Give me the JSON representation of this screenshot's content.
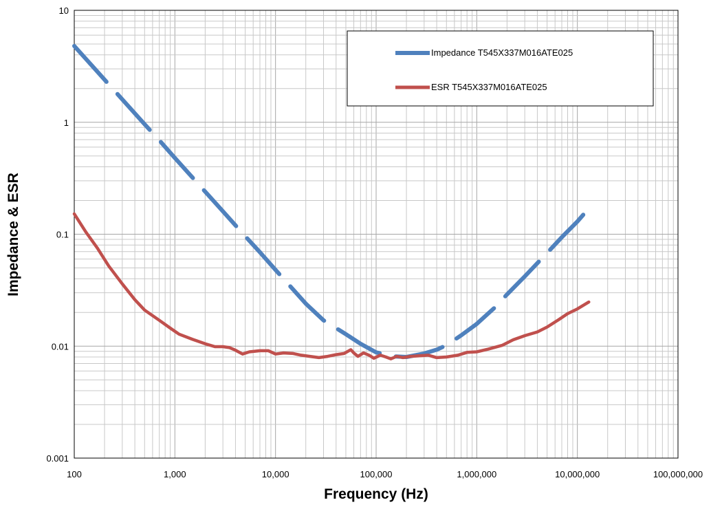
{
  "chart_data": {
    "type": "line",
    "xlabel": "Frequency (Hz)",
    "ylabel": "Impedance & ESR",
    "xscale": "log",
    "yscale": "log",
    "xlim": [
      100,
      100000000
    ],
    "ylim": [
      0.001,
      10
    ],
    "x_ticks": [
      {
        "value": 100,
        "label": "100"
      },
      {
        "value": 1000,
        "label": "1,000"
      },
      {
        "value": 10000,
        "label": "10,000"
      },
      {
        "value": 100000,
        "label": "100,000"
      },
      {
        "value": 1000000,
        "label": "1,000,000"
      },
      {
        "value": 10000000,
        "label": "10,000,000"
      },
      {
        "value": 100000000,
        "label": "100,000,000"
      }
    ],
    "y_ticks": [
      {
        "value": 0.001,
        "label": "0.001"
      },
      {
        "value": 0.01,
        "label": "0.01"
      },
      {
        "value": 0.1,
        "label": "0.1"
      },
      {
        "value": 1,
        "label": "1"
      },
      {
        "value": 10,
        "label": "10"
      }
    ],
    "grid": true,
    "legend_position": "top-right",
    "series": [
      {
        "name": "Impedance T545X337M016ATE025",
        "color": "#4f81bd",
        "style": "dashed",
        "points": [
          [
            100,
            4.8
          ],
          [
            150,
            3.2
          ],
          [
            200,
            2.4
          ],
          [
            300,
            1.6
          ],
          [
            500,
            0.96
          ],
          [
            700,
            0.69
          ],
          [
            1000,
            0.48
          ],
          [
            1500,
            0.32
          ],
          [
            2000,
            0.24
          ],
          [
            3000,
            0.16
          ],
          [
            5000,
            0.096
          ],
          [
            7000,
            0.069
          ],
          [
            10000,
            0.048
          ],
          [
            15000,
            0.032
          ],
          [
            20000,
            0.024
          ],
          [
            30000,
            0.017
          ],
          [
            40000,
            0.0145
          ],
          [
            50000,
            0.0128
          ],
          [
            70000,
            0.0105
          ],
          [
            100000,
            0.0088
          ],
          [
            150000,
            0.0081
          ],
          [
            200000,
            0.008
          ],
          [
            300000,
            0.0086
          ],
          [
            400000,
            0.0093
          ],
          [
            500000,
            0.0102
          ],
          [
            700000,
            0.0125
          ],
          [
            1000000,
            0.0158
          ],
          [
            1500000,
            0.022
          ],
          [
            2000000,
            0.029
          ],
          [
            3000000,
            0.042
          ],
          [
            5000000,
            0.068
          ],
          [
            7000000,
            0.094
          ],
          [
            10000000,
            0.13
          ],
          [
            13000000,
            0.17
          ]
        ]
      },
      {
        "name": "ESR T545X337M016ATE025",
        "color": "#c0504d",
        "style": "solid",
        "points": [
          [
            100,
            0.152
          ],
          [
            130,
            0.105
          ],
          [
            170,
            0.075
          ],
          [
            220,
            0.052
          ],
          [
            300,
            0.036
          ],
          [
            400,
            0.026
          ],
          [
            500,
            0.021
          ],
          [
            700,
            0.017
          ],
          [
            900,
            0.0145
          ],
          [
            1100,
            0.0128
          ],
          [
            1500,
            0.0115
          ],
          [
            2000,
            0.0105
          ],
          [
            2500,
            0.0099
          ],
          [
            3000,
            0.0099
          ],
          [
            3500,
            0.0097
          ],
          [
            4000,
            0.0092
          ],
          [
            4700,
            0.0085
          ],
          [
            5500,
            0.0089
          ],
          [
            7000,
            0.0091
          ],
          [
            8500,
            0.0091
          ],
          [
            10000,
            0.0085
          ],
          [
            12000,
            0.0087
          ],
          [
            15000,
            0.0086
          ],
          [
            18000,
            0.0083
          ],
          [
            22000,
            0.0081
          ],
          [
            27000,
            0.0079
          ],
          [
            33000,
            0.0081
          ],
          [
            40000,
            0.0084
          ],
          [
            48000,
            0.0086
          ],
          [
            56000,
            0.0093
          ],
          [
            60000,
            0.0087
          ],
          [
            66000,
            0.0081
          ],
          [
            75000,
            0.0087
          ],
          [
            85000,
            0.0083
          ],
          [
            95000,
            0.0078
          ],
          [
            110000,
            0.0083
          ],
          [
            125000,
            0.008
          ],
          [
            140000,
            0.0077
          ],
          [
            160000,
            0.0081
          ],
          [
            185000,
            0.0079
          ],
          [
            220000,
            0.0081
          ],
          [
            270000,
            0.0082
          ],
          [
            330000,
            0.0083
          ],
          [
            400000,
            0.0079
          ],
          [
            500000,
            0.008
          ],
          [
            650000,
            0.0083
          ],
          [
            800000,
            0.0088
          ],
          [
            1000000,
            0.0089
          ],
          [
            1300000,
            0.0094
          ],
          [
            1800000,
            0.0102
          ],
          [
            2300000,
            0.0114
          ],
          [
            3000000,
            0.0124
          ],
          [
            4000000,
            0.0134
          ],
          [
            5000000,
            0.0148
          ],
          [
            6500000,
            0.0172
          ],
          [
            8000000,
            0.0195
          ],
          [
            10000000,
            0.0215
          ],
          [
            13000000,
            0.0248
          ]
        ]
      }
    ]
  }
}
